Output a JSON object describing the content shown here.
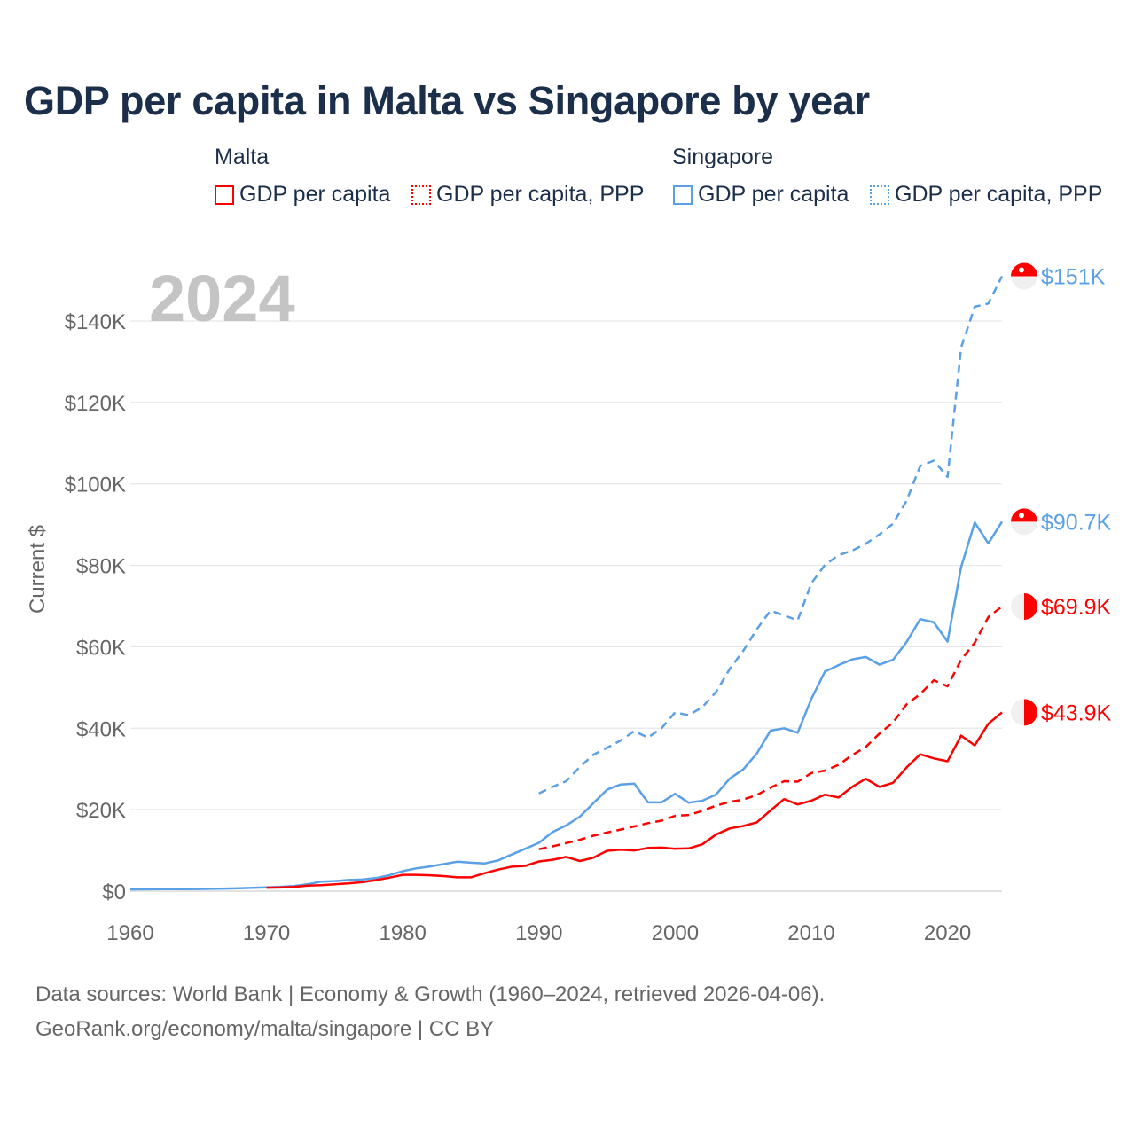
{
  "title": "GDP per capita in Malta vs Singapore by year",
  "legend": {
    "groups": [
      {
        "name": "Malta",
        "items": [
          "GDP per capita",
          "GDP per capita, PPP"
        ]
      },
      {
        "name": "Singapore",
        "items": [
          "GDP per capita",
          "GDP per capita, PPP"
        ]
      }
    ]
  },
  "colors": {
    "malta": "#ff0000",
    "singapore": "#5aa0e6",
    "grid": "#e6e6e6",
    "axis_text": "#666666"
  },
  "year_label": "2024",
  "footer": {
    "line1": "Data sources: World Bank | Economy & Growth (1960–2024, retrieved 2026-04-06).",
    "line2": "GeoRank.org/economy/malta/singapore | CC BY"
  },
  "chart_data": {
    "type": "line",
    "title": "GDP per capita in Malta vs Singapore by year",
    "xlabel": "",
    "ylabel": "Current $",
    "xlim": [
      1960,
      2024
    ],
    "ylim": [
      0,
      150000
    ],
    "x_ticks": [
      1960,
      1970,
      1980,
      1990,
      2000,
      2010,
      2020
    ],
    "x_tick_labels": [
      "1960",
      "1970",
      "1980",
      "1990",
      "2000",
      "2010",
      "2020"
    ],
    "y_ticks": [
      0,
      20000,
      40000,
      60000,
      80000,
      100000,
      120000,
      140000
    ],
    "y_tick_labels": [
      "$0",
      "$20K",
      "$40K",
      "$60K",
      "$80K",
      "$100K",
      "$120K",
      "$140K"
    ],
    "grid": true,
    "legend_position": "top",
    "series": [
      {
        "name": "Singapore GDP per capita, PPP",
        "country": "Singapore",
        "style": "dashed",
        "color": "#5aa0e6",
        "end_label": "$151K",
        "start": 1990,
        "values": [
          24000,
          25600,
          27000,
          30500,
          33500,
          35200,
          37000,
          39300,
          37700,
          40000,
          43900,
          43200,
          45200,
          48900,
          54500,
          59000,
          64300,
          68900,
          67700,
          66500,
          75600,
          80100,
          82500,
          83600,
          85300,
          87600,
          90200,
          95900,
          104400,
          105700,
          101700,
          133500,
          143500,
          144300,
          151000
        ]
      },
      {
        "name": "Singapore GDP per capita",
        "country": "Singapore",
        "style": "solid",
        "color": "#5aa0e6",
        "end_label": "$90.7K",
        "start": 1960,
        "values": [
          428,
          449,
          472,
          511,
          485,
          517,
          567,
          626,
          708,
          813,
          926,
          1071,
          1264,
          1685,
          2342,
          2490,
          2746,
          2846,
          3194,
          3901,
          4928,
          5596,
          6078,
          6633,
          7235,
          6990,
          6800,
          7540,
          9000,
          10400,
          11860,
          14500,
          16140,
          18300,
          21600,
          24900,
          26200,
          26400,
          21800,
          21800,
          23900,
          21700,
          22200,
          23700,
          27600,
          29900,
          33800,
          39400,
          40000,
          38900,
          47200,
          53900,
          55500,
          56900,
          57500,
          55600,
          56800,
          61200,
          66800,
          66000,
          61300,
          79600,
          90500,
          85400,
          90700
        ]
      },
      {
        "name": "Malta GDP per capita, PPP",
        "country": "Malta",
        "style": "dashed",
        "color": "#ff0000",
        "end_label": "$69.9K",
        "start": 1990,
        "values": [
          10300,
          11000,
          11800,
          12600,
          13600,
          14400,
          15100,
          15900,
          16700,
          17300,
          18500,
          18700,
          19700,
          21000,
          21900,
          22500,
          23600,
          25400,
          27000,
          26900,
          29000,
          29600,
          31000,
          33400,
          35400,
          38700,
          41400,
          45900,
          48400,
          51800,
          50300,
          56800,
          61000,
          67300,
          69900
        ]
      },
      {
        "name": "Malta GDP per capita",
        "country": "Malta",
        "style": "solid",
        "color": "#ff0000",
        "end_label": "$43.9K",
        "start": 1970,
        "values": [
          840,
          900,
          1050,
          1350,
          1450,
          1700,
          1900,
          2200,
          2700,
          3300,
          4000,
          4000,
          3900,
          3700,
          3400,
          3400,
          4400,
          5300,
          6000,
          6200,
          7300,
          7700,
          8400,
          7400,
          8200,
          9900,
          10200,
          10000,
          10600,
          10700,
          10400,
          10500,
          11500,
          13900,
          15400,
          16000,
          16900,
          19800,
          22600,
          21300,
          22200,
          23700,
          23000,
          25600,
          27600,
          25600,
          26600,
          30400,
          33600,
          32600,
          31900,
          38200,
          35800,
          41100,
          43900
        ]
      }
    ]
  }
}
